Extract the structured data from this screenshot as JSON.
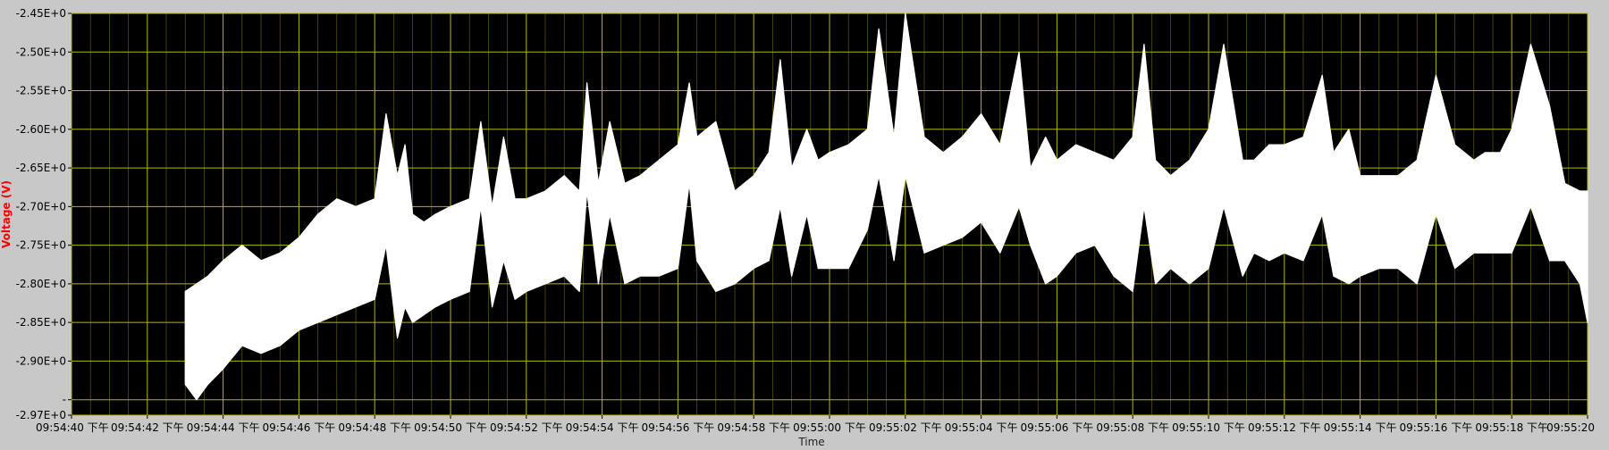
{
  "chart_data": {
    "type": "line",
    "xlabel": "Time",
    "ylabel": "Voltage (V)",
    "ylim": [
      -2.97,
      -2.45
    ],
    "xlim": [
      "09:54:40 下午",
      "09:55:20 下午"
    ],
    "grid": true,
    "legend": "none",
    "colors": {
      "plot_background": "#000000",
      "major_grid": "#b6b600",
      "minor_grid": "#6b6b00",
      "trace": "#ffffff",
      "frame_background": "#c8c8c8",
      "ylabel_color": "#ff0000"
    },
    "y_ticks": [
      {
        "label": "-2.45E+0",
        "value": -2.45
      },
      {
        "label": "-2.50E+0",
        "value": -2.5
      },
      {
        "label": "-2.55E+0",
        "value": -2.55
      },
      {
        "label": "-2.60E+0",
        "value": -2.6
      },
      {
        "label": "-2.65E+0",
        "value": -2.65
      },
      {
        "label": "-2.70E+0",
        "value": -2.7
      },
      {
        "label": "-2.75E+0",
        "value": -2.75
      },
      {
        "label": "-2.80E+0",
        "value": -2.8
      },
      {
        "label": "-2.85E+0",
        "value": -2.85
      },
      {
        "label": "-2.90E+0",
        "value": -2.9
      },
      {
        "label": "-",
        "value": -2.95
      },
      {
        "label": "-2.97E+0",
        "value": -2.97
      }
    ],
    "x_ticks": [
      {
        "label": "09:54:40 下午",
        "t": 0
      },
      {
        "label": "09:54:42 下午",
        "t": 2
      },
      {
        "label": "09:54:44 下午",
        "t": 4
      },
      {
        "label": "09:54:46 下午",
        "t": 6
      },
      {
        "label": "09:54:48 下午",
        "t": 8
      },
      {
        "label": "09:54:50 下午",
        "t": 10
      },
      {
        "label": "09:54:52 下午",
        "t": 12
      },
      {
        "label": "09:54:54 下午",
        "t": 14
      },
      {
        "label": "09:54:56 下午",
        "t": 16
      },
      {
        "label": "09:54:58 下午",
        "t": 18
      },
      {
        "label": "09:55:00 下午",
        "t": 20
      },
      {
        "label": "09:55:02 下午",
        "t": 22
      },
      {
        "label": "09:55:04 下午",
        "t": 24
      },
      {
        "label": "09:55:06 下午",
        "t": 26
      },
      {
        "label": "09:55:08 下午",
        "t": 28
      },
      {
        "label": "09:55:10 下午",
        "t": 30
      },
      {
        "label": "09:55:12 下午",
        "t": 32
      },
      {
        "label": "09:55:14 下午",
        "t": 34
      },
      {
        "label": "09:55:16 下午",
        "t": 36
      },
      {
        "label": "09:55:18 下午",
        "t": 38
      },
      {
        "label": "09:55:20",
        "t": 40
      }
    ],
    "series": [
      {
        "style": "band",
        "t": [
          3.0,
          3.3,
          3.6,
          4.0,
          4.5,
          5.0,
          5.5,
          6.0,
          6.5,
          7.0,
          7.5,
          8.0,
          8.3,
          8.6,
          8.8,
          9.0,
          9.3,
          9.6,
          10.0,
          10.5,
          10.8,
          11.1,
          11.4,
          11.7,
          12.0,
          12.5,
          13.0,
          13.4,
          13.6,
          13.9,
          14.2,
          14.6,
          15.0,
          15.5,
          16.0,
          16.3,
          16.5,
          17.0,
          17.5,
          18.0,
          18.4,
          18.7,
          19.0,
          19.4,
          19.7,
          20.0,
          20.5,
          21.0,
          21.3,
          21.7,
          22.0,
          22.5,
          23.0,
          23.5,
          24.0,
          24.5,
          25.0,
          25.3,
          25.7,
          26.0,
          26.5,
          27.0,
          27.5,
          28.0,
          28.3,
          28.6,
          29.0,
          29.5,
          30.0,
          30.4,
          30.9,
          31.2,
          31.6,
          32.0,
          32.5,
          33.0,
          33.3,
          33.7,
          34.0,
          34.5,
          35.0,
          35.5,
          36.0,
          36.5,
          37.0,
          37.3,
          37.7,
          38.0,
          38.5,
          39.0,
          39.4,
          39.8,
          40.0
        ],
        "upper": [
          -2.81,
          -2.8,
          -2.79,
          -2.77,
          -2.75,
          -2.77,
          -2.76,
          -2.74,
          -2.71,
          -2.69,
          -2.7,
          -2.69,
          -2.58,
          -2.66,
          -2.62,
          -2.71,
          -2.72,
          -2.71,
          -2.7,
          -2.69,
          -2.59,
          -2.7,
          -2.61,
          -2.69,
          -2.69,
          -2.68,
          -2.66,
          -2.68,
          -2.54,
          -2.67,
          -2.59,
          -2.67,
          -2.66,
          -2.64,
          -2.62,
          -2.54,
          -2.61,
          -2.59,
          -2.68,
          -2.66,
          -2.63,
          -2.51,
          -2.65,
          -2.6,
          -2.64,
          -2.63,
          -2.62,
          -2.6,
          -2.47,
          -2.61,
          -2.45,
          -2.61,
          -2.63,
          -2.61,
          -2.58,
          -2.62,
          -2.5,
          -2.65,
          -2.61,
          -2.64,
          -2.62,
          -2.63,
          -2.64,
          -2.61,
          -2.49,
          -2.64,
          -2.66,
          -2.64,
          -2.6,
          -2.49,
          -2.64,
          -2.64,
          -2.62,
          -2.62,
          -2.61,
          -2.53,
          -2.63,
          -2.6,
          -2.66,
          -2.66,
          -2.66,
          -2.64,
          -2.53,
          -2.62,
          -2.64,
          -2.63,
          -2.63,
          -2.6,
          -2.49,
          -2.57,
          -2.67,
          -2.68,
          -2.68
        ],
        "lower": [
          -2.93,
          -2.95,
          -2.93,
          -2.91,
          -2.88,
          -2.89,
          -2.88,
          -2.86,
          -2.85,
          -2.84,
          -2.83,
          -2.82,
          -2.75,
          -2.87,
          -2.83,
          -2.85,
          -2.84,
          -2.83,
          -2.82,
          -2.81,
          -2.7,
          -2.83,
          -2.77,
          -2.82,
          -2.81,
          -2.8,
          -2.79,
          -2.81,
          -2.68,
          -2.8,
          -2.71,
          -2.8,
          -2.79,
          -2.79,
          -2.78,
          -2.67,
          -2.77,
          -2.81,
          -2.8,
          -2.78,
          -2.77,
          -2.7,
          -2.79,
          -2.71,
          -2.78,
          -2.78,
          -2.78,
          -2.73,
          -2.66,
          -2.77,
          -2.66,
          -2.76,
          -2.75,
          -2.74,
          -2.72,
          -2.76,
          -2.7,
          -2.75,
          -2.8,
          -2.79,
          -2.76,
          -2.75,
          -2.79,
          -2.81,
          -2.7,
          -2.8,
          -2.78,
          -2.8,
          -2.78,
          -2.7,
          -2.79,
          -2.76,
          -2.77,
          -2.76,
          -2.77,
          -2.71,
          -2.79,
          -2.8,
          -2.79,
          -2.78,
          -2.78,
          -2.8,
          -2.71,
          -2.78,
          -2.76,
          -2.76,
          -2.76,
          -2.76,
          -2.7,
          -2.77,
          -2.77,
          -2.8,
          -2.85
        ]
      }
    ]
  }
}
